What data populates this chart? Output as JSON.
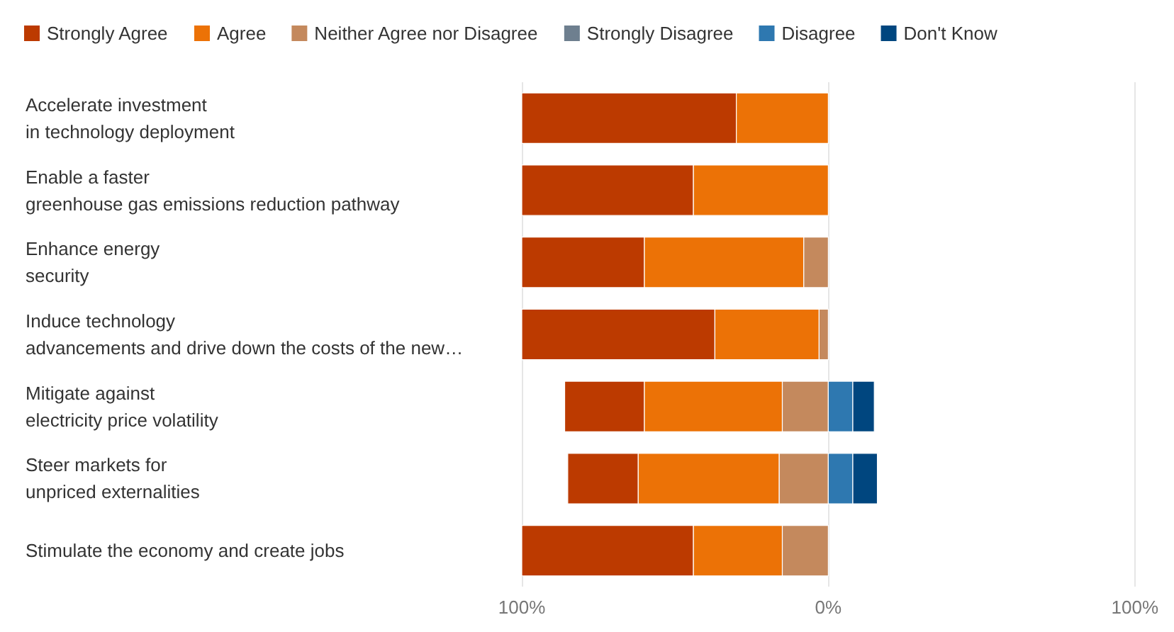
{
  "chart_data": {
    "type": "bar",
    "orientation": "horizontal",
    "categories": [
      "Accelerate investment\nin technology deployment",
      "Enable a faster\ngreenhouse gas emissions reduction pathway",
      "Enhance energy\nsecurity",
      "Induce technology\nadvancements and drive down the costs of the new…",
      "Mitigate against\nelectricity price volatility",
      "Steer markets for\nunpriced externalities",
      "Stimulate the economy and create jobs"
    ],
    "series": [
      {
        "name": "Strongly Agree",
        "color": "#bc3a00",
        "values": [
          70,
          56,
          40,
          63,
          26,
          23,
          56
        ],
        "base": [
          -100,
          -100,
          -100,
          -100,
          -86,
          -85,
          -100
        ]
      },
      {
        "name": "Agree",
        "color": "#ec7206",
        "values": [
          30,
          44,
          52,
          34,
          45,
          46,
          29
        ],
        "base": [
          -30,
          -44,
          -60,
          -37,
          -60,
          -62,
          -44
        ]
      },
      {
        "name": "Neither Agree nor Disagree",
        "color": "#c4895d",
        "values": [
          null,
          null,
          8,
          3,
          15,
          16,
          15
        ],
        "base": [
          null,
          null,
          -8,
          -3,
          -15,
          -16,
          -15
        ]
      },
      {
        "name": "Strongly Disagree",
        "color": "#6e7f8f",
        "values": [
          null,
          null,
          null,
          null,
          null,
          null,
          null
        ],
        "base": [
          null,
          null,
          null,
          null,
          null,
          null,
          null
        ]
      },
      {
        "name": "Disagree",
        "color": "#2e78b0",
        "values": [
          null,
          null,
          null,
          null,
          8,
          8,
          null
        ],
        "base": [
          null,
          null,
          null,
          null,
          0,
          0,
          null
        ]
      },
      {
        "name": "Don't Know",
        "color": "#00467f",
        "values": [
          null,
          null,
          null,
          null,
          7,
          8,
          null
        ],
        "base": [
          null,
          null,
          null,
          null,
          8,
          8,
          null
        ]
      }
    ],
    "xlim": [
      -100,
      100
    ],
    "xticks": [
      {
        "value": -100,
        "label": "100%"
      },
      {
        "value": 0,
        "label": "0%"
      },
      {
        "value": 100,
        "label": "100%"
      }
    ],
    "grid": "x",
    "legend": "top left"
  }
}
